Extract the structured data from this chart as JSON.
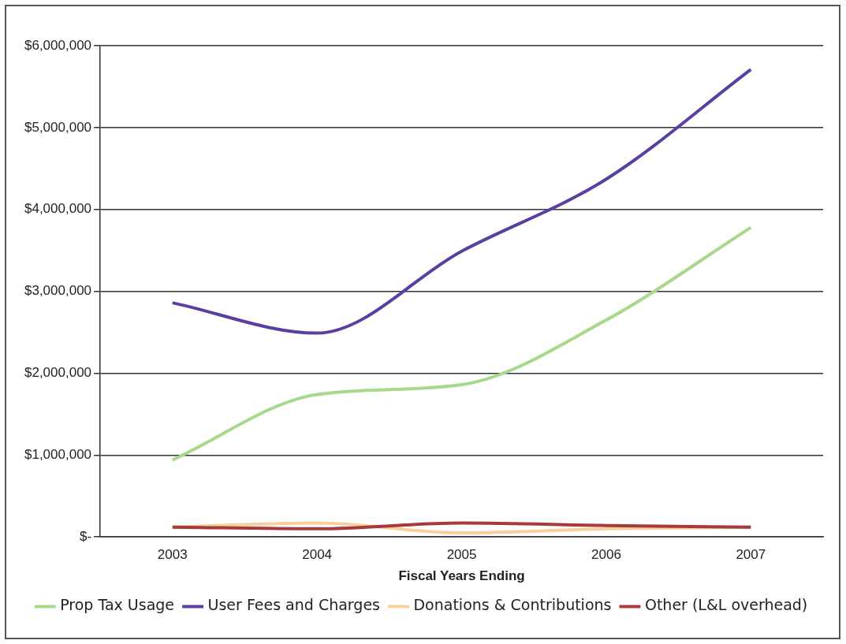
{
  "chart_data": {
    "type": "line",
    "xlabel": "Fiscal Years Ending",
    "categories": [
      "2003",
      "2004",
      "2005",
      "2006",
      "2007"
    ],
    "series": [
      {
        "name": "Prop Tax Usage",
        "color": "#a6d98a",
        "values": [
          940000,
          1740000,
          1860000,
          2650000,
          3780000
        ]
      },
      {
        "name": "User Fees and Charges",
        "color": "#5b3fa0",
        "values": [
          2860000,
          2490000,
          3490000,
          4370000,
          5710000
        ]
      },
      {
        "name": "Donations & Contributions",
        "color": "#f9cf9c",
        "values": [
          120000,
          170000,
          50000,
          100000,
          120000
        ]
      },
      {
        "name": "Other (L&L overhead)",
        "color": "#a83a3a",
        "values": [
          120000,
          100000,
          170000,
          140000,
          120000
        ]
      }
    ],
    "ylim": [
      0,
      6000000
    ],
    "yticks": [
      {
        "value": 0,
        "label": "$-"
      },
      {
        "value": 1000000,
        "label": "$1,000,000"
      },
      {
        "value": 2000000,
        "label": "$2,000,000"
      },
      {
        "value": 3000000,
        "label": "$3,000,000"
      },
      {
        "value": 4000000,
        "label": "$4,000,000"
      },
      {
        "value": 5000000,
        "label": "$5,000,000"
      },
      {
        "value": 6000000,
        "label": "$6,000,000"
      }
    ],
    "grid": "y",
    "legend": "bottom",
    "marker": "none",
    "line_style": "solid"
  }
}
